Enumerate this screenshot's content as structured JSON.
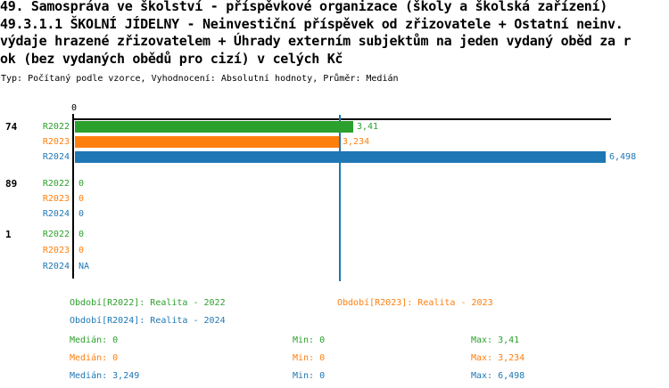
{
  "title": {
    "lines": [
      "49. Samospráva ve školství - příspěvkové organizace (školy a školská zařízení)",
      "49.3.1.1 ŠKOLNÍ JÍDELNY - Neinvestiční příspěvek od zřizovatele + Ostatní neinv.",
      "výdaje hrazené zřizovatelem + Úhrady externím subjektům na jeden vydaný oběd za r",
      "ok (bez vydaných obědů pro cizí) v celých Kč"
    ],
    "meta": "Typ: Počítaný podle vzorce, Vyhodnocení: Absolutní hodnoty, Průměr: Medián"
  },
  "chart_data": {
    "type": "bar",
    "orientation": "horizontal",
    "axis": {
      "zero_label": "0",
      "xmin": 0,
      "xmax": 6.55,
      "grid": false
    },
    "series_colors": {
      "R2022": "#2ca02c",
      "R2023": "#ff7f0e",
      "R2024": "#1f77b4"
    },
    "groups": [
      {
        "label": "74",
        "bars": [
          {
            "series": "R2022",
            "value": 3.41,
            "value_label": "3,41"
          },
          {
            "series": "R2023",
            "value": 3.234,
            "value_label": "3,234"
          },
          {
            "series": "R2024",
            "value": 6.498,
            "value_label": "6,498"
          }
        ]
      },
      {
        "label": "89",
        "bars": [
          {
            "series": "R2022",
            "value": 0,
            "value_label": "0"
          },
          {
            "series": "R2023",
            "value": 0,
            "value_label": "0"
          },
          {
            "series": "R2024",
            "value": 0,
            "value_label": "0"
          }
        ]
      },
      {
        "label": "1",
        "bars": [
          {
            "series": "R2022",
            "value": 0,
            "value_label": "0"
          },
          {
            "series": "R2023",
            "value": 0,
            "value_label": "0"
          },
          {
            "series": "R2024",
            "value": null,
            "value_label": "NA"
          }
        ]
      }
    ],
    "median_line": {
      "value": 3.249,
      "color": "#1f77b4"
    }
  },
  "legend": {
    "items": [
      {
        "series": "R2022",
        "text": "Období[R2022]: Realita - 2022",
        "color": "#2ca02c"
      },
      {
        "series": "R2023",
        "text": "Období[R2023]: Realita - 2023",
        "color": "#ff7f0e"
      },
      {
        "series": "R2024",
        "text": "Období[R2024]: Realita - 2024",
        "color": "#1f77b4"
      }
    ]
  },
  "stats": {
    "rows": [
      {
        "series": "R2022",
        "color": "#2ca02c",
        "median": "Medián: 0",
        "min": "Min: 0",
        "max": "Max: 3,41"
      },
      {
        "series": "R2023",
        "color": "#ff7f0e",
        "median": "Medián: 0",
        "min": "Min: 0",
        "max": "Max: 3,234"
      },
      {
        "series": "R2024",
        "color": "#1f77b4",
        "median": "Medián: 3,249",
        "min": "Min: 0",
        "max": "Max: 6,498"
      }
    ]
  }
}
